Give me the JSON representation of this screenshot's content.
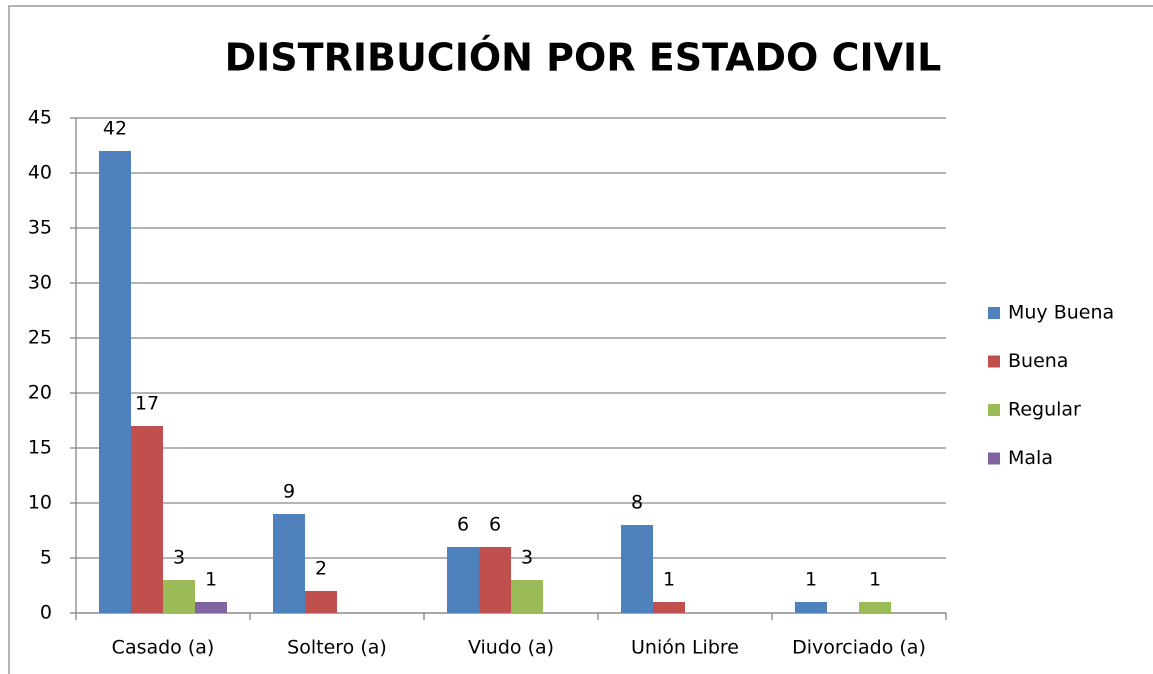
{
  "chart_data": {
    "type": "bar",
    "title": "DISTRIBUCIÓN POR ESTADO CIVIL",
    "categories": [
      "Casado (a)",
      "Soltero (a)",
      "Viudo (a)",
      "Unión Libre",
      "Divorciado (a)"
    ],
    "series": [
      {
        "name": "Muy Buena",
        "color": "#4f81bd",
        "values": [
          42,
          9,
          6,
          8,
          1
        ]
      },
      {
        "name": "Buena",
        "color": "#c0504d",
        "values": [
          17,
          2,
          6,
          1,
          null
        ]
      },
      {
        "name": "Regular",
        "color": "#9bbb59",
        "values": [
          3,
          null,
          3,
          null,
          1
        ]
      },
      {
        "name": "Mala",
        "color": "#8064a2",
        "values": [
          1,
          null,
          null,
          null,
          null
        ]
      }
    ],
    "ylim": [
      0,
      45
    ],
    "yticks": [
      0,
      5,
      10,
      15,
      20,
      25,
      30,
      35,
      40,
      45
    ],
    "grid": true,
    "legend": "right"
  }
}
